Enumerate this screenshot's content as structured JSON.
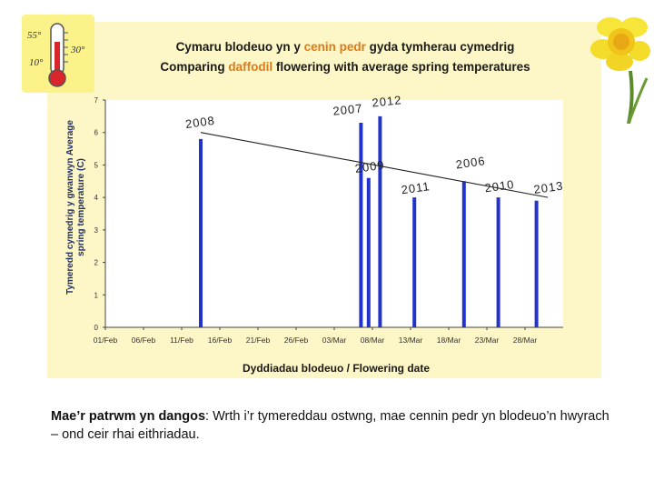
{
  "titles": {
    "welsh_pre": "Cymaru blodeuo yn y ",
    "welsh_hl": "cenin pedr",
    "welsh_post": " gyda tymherau cymedrig",
    "english_pre": "Comparing ",
    "english_hl": "daffodil",
    "english_post": " flowering with average spring temperatures"
  },
  "axes": {
    "ylabel_welsh": "Tymeredd cymedrig y gwanwyn Average",
    "ylabel_english": "spring temperature (C)",
    "xlabel": "Dyddiadau blodeuo / Flowering date"
  },
  "thermometer": {
    "label_55": "55°",
    "label_30": "30°",
    "label_10": "10°"
  },
  "caption": {
    "lead": "Mae’r patrwm yn dangos",
    "rest": ": Wrth i’r tymereddau ostwng, mae cennin pedr yn blodeuo’n hwyrach – ond ceir rhai eithriadau."
  },
  "colors": {
    "bar": "#2233cc",
    "panel": "#fdf6c6",
    "accent": "#e07a18",
    "grid": "#ffffff"
  },
  "chart_data": {
    "type": "bar",
    "x_ticks": [
      "01/Feb",
      "06/Feb",
      "11/Feb",
      "16/Feb",
      "21/Feb",
      "26/Feb",
      "03/Mar",
      "08/Mar",
      "13/Mar",
      "18/Mar",
      "23/Mar",
      "28/Mar"
    ],
    "y_ticks": [
      "0",
      "1",
      "2",
      "3",
      "4",
      "5",
      "6",
      "7"
    ],
    "ylim": [
      0,
      7
    ],
    "xlim_days": [
      0,
      60
    ],
    "points": [
      {
        "year": "2008",
        "date": "13/Feb",
        "day": 12.5,
        "value": 5.8
      },
      {
        "year": "2007",
        "date": "06/Mar",
        "day": 33.5,
        "value": 6.3
      },
      {
        "year": "2009",
        "date": "07/Mar",
        "day": 34.5,
        "value": 4.6
      },
      {
        "year": "2012",
        "date": "08/Mar",
        "day": 36.0,
        "value": 6.5
      },
      {
        "year": "2011",
        "date": "13/Mar",
        "day": 40.5,
        "value": 4.0
      },
      {
        "year": "2006",
        "date": "20/Mar",
        "day": 47.0,
        "value": 4.5
      },
      {
        "year": "2010",
        "date": "25/Mar",
        "day": 51.5,
        "value": 4.0
      },
      {
        "year": "2013",
        "date": "30/Mar",
        "day": 56.5,
        "value": 3.9
      }
    ],
    "trendline": {
      "start": {
        "day": 12.5,
        "value": 6.0
      },
      "end": {
        "day": 58.0,
        "value": 4.0
      }
    },
    "grid": false
  }
}
